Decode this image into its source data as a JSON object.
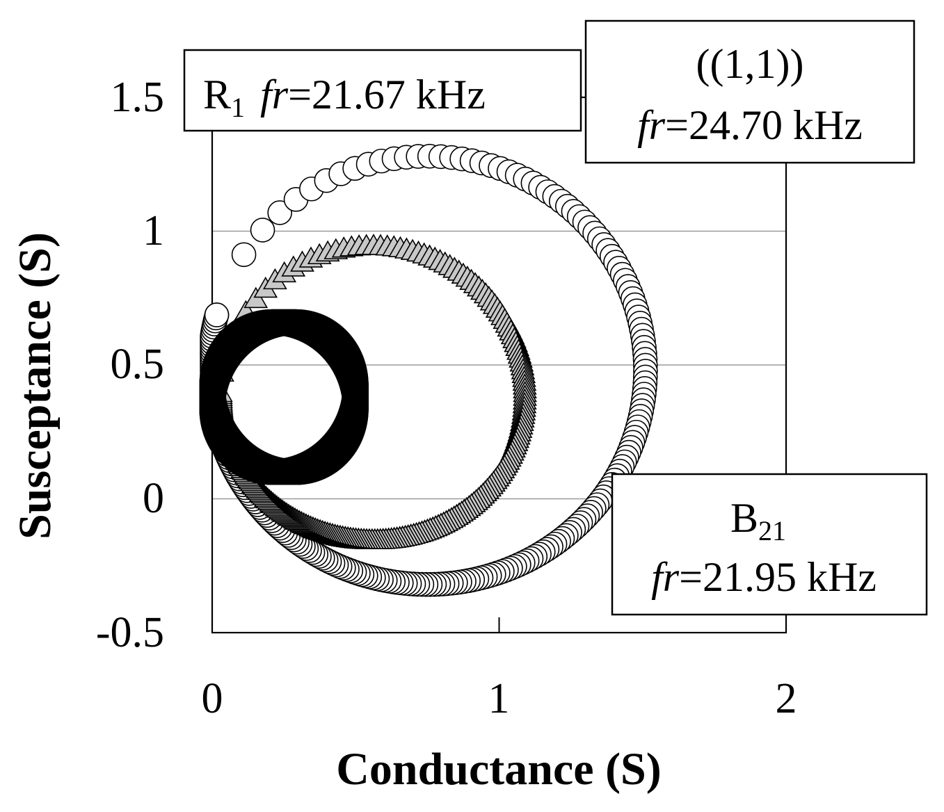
{
  "chart_data": {
    "type": "scatter",
    "xlabel": "Conductance (S)",
    "ylabel": "Susceptance (S)",
    "xlim": [
      0,
      2
    ],
    "ylim": [
      -0.5,
      1.5
    ],
    "x_ticks": [
      "0",
      "1",
      "2"
    ],
    "y_ticks": [
      "-0.5",
      "0",
      "0.5",
      "1",
      "1.5"
    ],
    "grid": "horizontal",
    "series": [
      {
        "marker": "open-circle",
        "color": "#ffffff",
        "circle": {
          "center_g": 0.75,
          "center_b": 0.48,
          "radius_g": 0.76,
          "radius_b": 0.8
        },
        "start_angle_deg": 195,
        "end_angle_deg": 555,
        "point_count": 240
      },
      {
        "marker": "gray-triangle",
        "color": "#c8c8c8",
        "circle": {
          "center_g": 0.56,
          "center_b": 0.4,
          "radius_g": 0.53,
          "radius_b": 0.55
        },
        "start_angle_deg": 188,
        "end_angle_deg": 540,
        "point_count": 240
      },
      {
        "marker": "filled-diamond",
        "color": "#000000",
        "circle": {
          "center_g": 0.25,
          "center_b": 0.38,
          "radius_g": 0.25,
          "radius_b": 0.28
        },
        "start_angle_deg": 160,
        "end_angle_deg": 520,
        "point_count": 600
      }
    ],
    "annotations": [
      {
        "id": "r1",
        "label_main": "R",
        "label_sub": "1",
        "fr_prefix": "fr",
        "fr_value": "=21.67 kHz"
      },
      {
        "id": "mode11",
        "label_main": "((1,1))",
        "fr_prefix": "fr",
        "fr_value": "=24.70 kHz"
      },
      {
        "id": "b21",
        "label_main": "B",
        "label_sub": "21",
        "fr_prefix": "fr",
        "fr_value": "=21.95 kHz"
      }
    ]
  }
}
